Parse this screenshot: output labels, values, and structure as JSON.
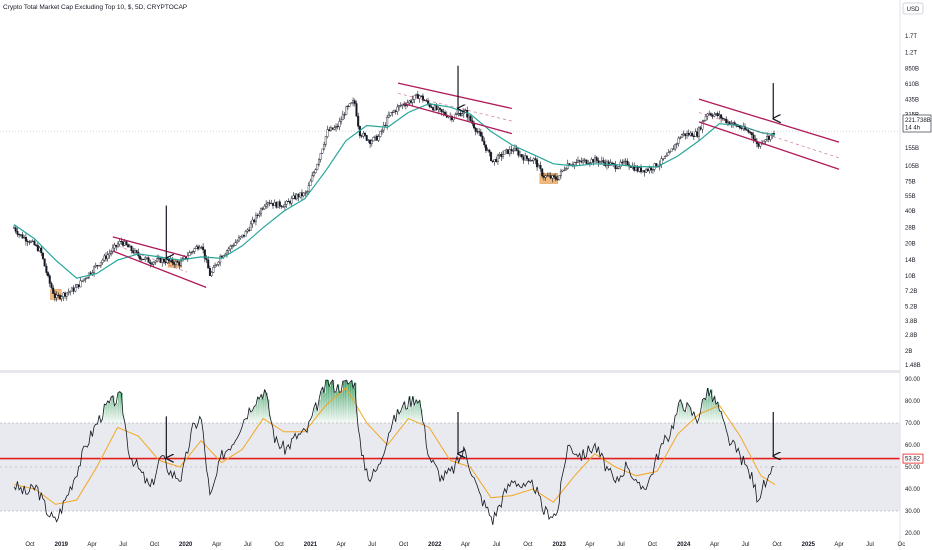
{
  "header": {
    "title": "Crypto Total Market Cap Excluding Top 10, $, 5D, CRYPTOCAP",
    "currency_button": "USD"
  },
  "colors": {
    "candle": "#131722",
    "ma_line": "#26a69a",
    "channel": "#b0195a",
    "rsi_line": "#131722",
    "rsi_ma": "#f5a623",
    "level_line": "#e31e1e",
    "highlight": "#f0a860",
    "band": "#e6e8ee",
    "grid": "#dfe1e6"
  },
  "chart_data": [
    {
      "type": "candlestick",
      "panel": "price",
      "y_scale": "log",
      "ylim": [
        "1.4B",
        "1.3T"
      ],
      "y_ticks": [
        "USD",
        "1.7T",
        "1.2T",
        "850B",
        "610B",
        "435B",
        "315B",
        "221.738B",
        "14 4h",
        "155B",
        "105B",
        "75B",
        "55B",
        "40B",
        "28B",
        "20B",
        "14B",
        "10B",
        "7.2B",
        "5.2B",
        "3.8B",
        "2.8B",
        "2B",
        "1.48B"
      ],
      "y_tick_values": [
        1700,
        1200,
        850,
        610,
        435,
        315,
        155,
        105,
        75,
        55,
        40,
        28,
        20,
        14,
        10,
        7.2,
        5.2,
        3.8,
        2.8,
        2,
        1.48
      ],
      "last_price": "221.738B",
      "last_price_sub": "14 4h",
      "x_ticks": [
        "Oct",
        "2019",
        "Apr",
        "Jul",
        "Oct",
        "2020",
        "Apr",
        "Jul",
        "Oct",
        "2021",
        "Apr",
        "Jul",
        "Oct",
        "2022",
        "Apr",
        "Jul",
        "Oct",
        "2023",
        "Apr",
        "Jul",
        "Oct",
        "2024",
        "Apr",
        "Jul",
        "Oct",
        "2025",
        "Apr",
        "Jul",
        "Oc"
      ],
      "x_tick_dates": [
        "2018-10",
        "2019-01",
        "2019-04",
        "2019-07",
        "2019-10",
        "2020-01",
        "2020-04",
        "2020-07",
        "2020-10",
        "2021-01",
        "2021-04",
        "2021-07",
        "2021-10",
        "2022-01",
        "2022-04",
        "2022-07",
        "2022-10",
        "2023-01",
        "2023-04",
        "2023-07",
        "2023-10",
        "2024-01",
        "2024-04",
        "2024-07",
        "2024-10",
        "2025-01",
        "2025-04",
        "2025-07",
        "2025-10"
      ],
      "series_close": [
        [
          "2018-08-15",
          28
        ],
        [
          "2018-09-01",
          24
        ],
        [
          "2018-10-01",
          21
        ],
        [
          "2018-11-01",
          17
        ],
        [
          "2018-11-25",
          9
        ],
        [
          "2018-12-15",
          6.2
        ],
        [
          "2019-01-10",
          6.8
        ],
        [
          "2019-02-10",
          7.6
        ],
        [
          "2019-03-10",
          9.5
        ],
        [
          "2019-04-15",
          12.5
        ],
        [
          "2019-05-20",
          16
        ],
        [
          "2019-06-25",
          21
        ],
        [
          "2019-07-20",
          18
        ],
        [
          "2019-08-20",
          15
        ],
        [
          "2019-09-20",
          13.5
        ],
        [
          "2019-10-20",
          14
        ],
        [
          "2019-11-20",
          13.5
        ],
        [
          "2019-12-15",
          13
        ],
        [
          "2020-01-10",
          16
        ],
        [
          "2020-02-15",
          20
        ],
        [
          "2020-03-13",
          10
        ],
        [
          "2020-04-10",
          15
        ],
        [
          "2020-05-15",
          19
        ],
        [
          "2020-06-20",
          24
        ],
        [
          "2020-07-20",
          33
        ],
        [
          "2020-08-25",
          50
        ],
        [
          "2020-09-20",
          46
        ],
        [
          "2020-10-20",
          46
        ],
        [
          "2020-11-20",
          55
        ],
        [
          "2020-12-20",
          58
        ],
        [
          "2021-01-20",
          110
        ],
        [
          "2021-02-20",
          220
        ],
        [
          "2021-03-20",
          240
        ],
        [
          "2021-04-15",
          350
        ],
        [
          "2021-05-10",
          420
        ],
        [
          "2021-05-25",
          215
        ],
        [
          "2021-06-25",
          180
        ],
        [
          "2021-07-20",
          195
        ],
        [
          "2021-08-20",
          310
        ],
        [
          "2021-09-20",
          380
        ],
        [
          "2021-10-20",
          420
        ],
        [
          "2021-11-15",
          480
        ],
        [
          "2021-12-15",
          390
        ],
        [
          "2022-01-20",
          330
        ],
        [
          "2022-02-20",
          300
        ],
        [
          "2022-03-30",
          340
        ],
        [
          "2022-05-10",
          210
        ],
        [
          "2022-06-20",
          115
        ],
        [
          "2022-07-25",
          140
        ],
        [
          "2022-08-20",
          150
        ],
        [
          "2022-09-20",
          125
        ],
        [
          "2022-10-20",
          120
        ],
        [
          "2022-11-15",
          85
        ],
        [
          "2022-12-25",
          80
        ],
        [
          "2023-01-25",
          110
        ],
        [
          "2023-03-10",
          115
        ],
        [
          "2023-04-15",
          120
        ],
        [
          "2023-06-15",
          105
        ],
        [
          "2023-07-20",
          112
        ],
        [
          "2023-08-20",
          96
        ],
        [
          "2023-09-20",
          98
        ],
        [
          "2023-10-20",
          110
        ],
        [
          "2023-11-20",
          135
        ],
        [
          "2023-12-25",
          205
        ],
        [
          "2024-02-10",
          210
        ],
        [
          "2024-03-10",
          330
        ],
        [
          "2024-04-10",
          310
        ],
        [
          "2024-05-10",
          270
        ],
        [
          "2024-06-15",
          240
        ],
        [
          "2024-07-20",
          210
        ],
        [
          "2024-08-05",
          160
        ],
        [
          "2024-08-25",
          190
        ],
        [
          "2024-09-15",
          200
        ],
        [
          "2024-09-25",
          221.738
        ]
      ],
      "ma_values": [
        [
          "2018-08-15",
          30
        ],
        [
          "2018-10-15",
          22
        ],
        [
          "2018-12-15",
          14
        ],
        [
          "2019-02-15",
          9.5
        ],
        [
          "2019-04-15",
          10.5
        ],
        [
          "2019-06-15",
          14
        ],
        [
          "2019-08-15",
          16
        ],
        [
          "2019-10-15",
          15
        ],
        [
          "2019-12-15",
          14
        ],
        [
          "2020-02-15",
          15
        ],
        [
          "2020-04-15",
          14.5
        ],
        [
          "2020-06-15",
          19
        ],
        [
          "2020-08-15",
          28
        ],
        [
          "2020-10-15",
          40
        ],
        [
          "2020-12-15",
          52
        ],
        [
          "2021-02-15",
          95
        ],
        [
          "2021-04-15",
          180
        ],
        [
          "2021-06-15",
          250
        ],
        [
          "2021-08-15",
          240
        ],
        [
          "2021-10-15",
          330
        ],
        [
          "2021-12-15",
          400
        ],
        [
          "2022-02-15",
          370
        ],
        [
          "2022-04-15",
          320
        ],
        [
          "2022-06-15",
          220
        ],
        [
          "2022-08-15",
          165
        ],
        [
          "2022-10-15",
          135
        ],
        [
          "2022-12-15",
          110
        ],
        [
          "2023-02-15",
          105
        ],
        [
          "2023-04-15",
          110
        ],
        [
          "2023-06-15",
          108
        ],
        [
          "2023-08-15",
          104
        ],
        [
          "2023-10-15",
          103
        ],
        [
          "2023-12-15",
          130
        ],
        [
          "2024-02-15",
          180
        ],
        [
          "2024-04-15",
          260
        ],
        [
          "2024-06-15",
          250
        ],
        [
          "2024-08-15",
          215
        ],
        [
          "2024-09-25",
          205
        ]
      ],
      "channels": [
        {
          "upper": [
            [
              "2019-06-01",
              23
            ],
            [
              "2020-01-05",
              15
            ]
          ],
          "lower": [
            [
              "2019-06-01",
              17
            ],
            [
              "2020-03-01",
              7.8
            ]
          ]
        },
        {
          "upper": [
            [
              "2021-09-15",
              620
            ],
            [
              "2022-08-15",
              360
            ]
          ],
          "lower": [
            [
              "2021-10-01",
              400
            ],
            [
              "2022-08-15",
              210
            ]
          ]
        },
        {
          "upper": [
            [
              "2024-02-15",
              440
            ],
            [
              "2025-04-01",
              175
            ]
          ],
          "mid": [
            [
              "2024-02-15",
              330
            ],
            [
              "2025-04-01",
              125
            ]
          ],
          "lower": [
            [
              "2024-02-15",
              270
            ],
            [
              "2025-04-01",
              98
            ]
          ]
        }
      ],
      "highlight_boxes": [
        {
          "from": "2018-11-30",
          "to": "2019-01-01",
          "low": 6.0,
          "high": 7.5
        },
        {
          "from": "2019-11-10",
          "to": "2019-12-20",
          "low": 12.0,
          "high": 14.0
        },
        {
          "from": "2022-11-05",
          "to": "2022-12-28",
          "low": 72,
          "high": 90
        }
      ],
      "arrows": [
        {
          "date": "2019-11-05",
          "from": 45,
          "to": 14.5
        },
        {
          "date": "2022-03-10",
          "from": 900,
          "to": 360
        },
        {
          "date": "2024-09-20",
          "from": 620,
          "to": 290
        }
      ]
    },
    {
      "type": "line",
      "panel": "rsi",
      "ylim": [
        20,
        90
      ],
      "y_ticks": [
        "90.00",
        "80.00",
        "70.00",
        "60.00",
        "50.00",
        "40.00",
        "30.00",
        "20.00"
      ],
      "y_tick_values": [
        90,
        80,
        70,
        60,
        50,
        40,
        30,
        20
      ],
      "band": [
        30,
        70
      ],
      "level": 53.82,
      "level_label": "53.82",
      "rsi": [
        [
          "2018-08-15",
          42
        ],
        [
          "2018-09-20",
          38
        ],
        [
          "2018-10-20",
          41
        ],
        [
          "2018-11-20",
          30
        ],
        [
          "2018-12-15",
          25
        ],
        [
          "2019-01-15",
          36
        ],
        [
          "2019-02-15",
          48
        ],
        [
          "2019-03-15",
          60
        ],
        [
          "2019-04-15",
          70
        ],
        [
          "2019-05-15",
          78
        ],
        [
          "2019-06-25",
          82
        ],
        [
          "2019-07-20",
          56
        ],
        [
          "2019-08-20",
          48
        ],
        [
          "2019-09-20",
          40
        ],
        [
          "2019-10-20",
          55
        ],
        [
          "2019-11-20",
          47
        ],
        [
          "2019-12-20",
          45
        ],
        [
          "2020-01-20",
          67
        ],
        [
          "2020-02-15",
          73
        ],
        [
          "2020-03-13",
          35
        ],
        [
          "2020-04-15",
          55
        ],
        [
          "2020-05-20",
          62
        ],
        [
          "2020-06-20",
          72
        ],
        [
          "2020-07-20",
          80
        ],
        [
          "2020-08-20",
          85
        ],
        [
          "2020-09-20",
          62
        ],
        [
          "2020-10-20",
          58
        ],
        [
          "2020-11-20",
          64
        ],
        [
          "2020-12-20",
          66
        ],
        [
          "2021-01-20",
          78
        ],
        [
          "2021-02-20",
          89
        ],
        [
          "2021-03-20",
          86
        ],
        [
          "2021-04-15",
          88
        ],
        [
          "2021-05-10",
          89
        ],
        [
          "2021-05-30",
          55
        ],
        [
          "2021-06-25",
          45
        ],
        [
          "2021-07-20",
          50
        ],
        [
          "2021-08-20",
          67
        ],
        [
          "2021-09-20",
          76
        ],
        [
          "2021-10-20",
          80
        ],
        [
          "2021-11-15",
          82
        ],
        [
          "2021-12-15",
          55
        ],
        [
          "2022-01-20",
          45
        ],
        [
          "2022-02-20",
          48
        ],
        [
          "2022-03-30",
          58
        ],
        [
          "2022-05-10",
          38
        ],
        [
          "2022-06-20",
          26
        ],
        [
          "2022-07-25",
          38
        ],
        [
          "2022-08-20",
          45
        ],
        [
          "2022-09-20",
          40
        ],
        [
          "2022-10-20",
          42
        ],
        [
          "2022-11-15",
          30
        ],
        [
          "2022-12-25",
          28
        ],
        [
          "2023-01-25",
          60
        ],
        [
          "2023-03-10",
          55
        ],
        [
          "2023-04-15",
          60
        ],
        [
          "2023-06-15",
          42
        ],
        [
          "2023-07-20",
          52
        ],
        [
          "2023-08-20",
          40
        ],
        [
          "2023-09-20",
          43
        ],
        [
          "2023-10-20",
          57
        ],
        [
          "2023-11-20",
          65
        ],
        [
          "2023-12-25",
          80
        ],
        [
          "2024-02-10",
          72
        ],
        [
          "2024-03-10",
          85
        ],
        [
          "2024-04-10",
          78
        ],
        [
          "2024-05-10",
          63
        ],
        [
          "2024-06-15",
          55
        ],
        [
          "2024-07-20",
          45
        ],
        [
          "2024-08-05",
          36
        ],
        [
          "2024-08-25",
          42
        ],
        [
          "2024-09-10",
          44
        ],
        [
          "2024-09-25",
          51
        ]
      ],
      "rsi_ma": [
        [
          "2018-08-15",
          42
        ],
        [
          "2018-10-15",
          40
        ],
        [
          "2018-12-15",
          33
        ],
        [
          "2019-02-15",
          35
        ],
        [
          "2019-04-15",
          50
        ],
        [
          "2019-06-15",
          68
        ],
        [
          "2019-08-15",
          64
        ],
        [
          "2019-10-15",
          53
        ],
        [
          "2019-12-15",
          50
        ],
        [
          "2020-02-15",
          62
        ],
        [
          "2020-04-15",
          52
        ],
        [
          "2020-06-15",
          58
        ],
        [
          "2020-08-15",
          72
        ],
        [
          "2020-10-15",
          66
        ],
        [
          "2020-12-15",
          66
        ],
        [
          "2021-02-15",
          78
        ],
        [
          "2021-04-15",
          86
        ],
        [
          "2021-06-15",
          70
        ],
        [
          "2021-08-15",
          60
        ],
        [
          "2021-10-15",
          72
        ],
        [
          "2021-12-15",
          68
        ],
        [
          "2022-02-15",
          53
        ],
        [
          "2022-04-15",
          50
        ],
        [
          "2022-06-15",
          36
        ],
        [
          "2022-08-15",
          37
        ],
        [
          "2022-10-15",
          40
        ],
        [
          "2022-12-15",
          34
        ],
        [
          "2023-02-15",
          46
        ],
        [
          "2023-04-15",
          56
        ],
        [
          "2023-06-15",
          50
        ],
        [
          "2023-08-15",
          46
        ],
        [
          "2023-10-15",
          48
        ],
        [
          "2023-12-15",
          65
        ],
        [
          "2024-02-15",
          74
        ],
        [
          "2024-04-15",
          78
        ],
        [
          "2024-06-15",
          64
        ],
        [
          "2024-08-15",
          46
        ],
        [
          "2024-09-25",
          42
        ]
      ],
      "arrows": [
        {
          "date": "2019-11-05",
          "from": 73,
          "to": 54
        },
        {
          "date": "2022-03-10",
          "from": 75,
          "to": 56
        },
        {
          "date": "2024-09-20",
          "from": 75,
          "to": 55
        }
      ]
    }
  ]
}
